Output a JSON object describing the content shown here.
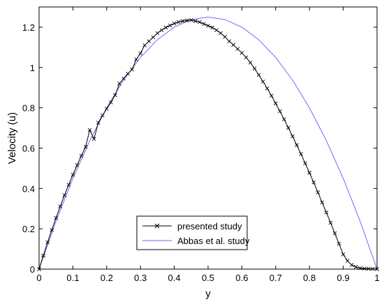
{
  "chart_data": {
    "type": "line",
    "title": "",
    "xlabel": "y",
    "ylabel": "Velocity (u)",
    "xlim": [
      0,
      1
    ],
    "ylim": [
      0,
      1.3
    ],
    "x_ticks": [
      "0",
      "0.1",
      "0.2",
      "0.3",
      "0.4",
      "0.5",
      "0.6",
      "0.7",
      "0.8",
      "0.9",
      "1"
    ],
    "y_ticks": [
      "0",
      "0.2",
      "0.4",
      "0.6",
      "0.8",
      "1",
      "1.2"
    ],
    "grid": false,
    "legend_position": "bottom-center",
    "series": [
      {
        "name": "presented study",
        "color": "#000000",
        "marker": "x",
        "x": [
          0,
          0.0125,
          0.025,
          0.0375,
          0.05,
          0.0625,
          0.075,
          0.0875,
          0.1,
          0.1125,
          0.125,
          0.1375,
          0.15,
          0.1625,
          0.175,
          0.1875,
          0.2,
          0.2125,
          0.225,
          0.2375,
          0.25,
          0.2625,
          0.275,
          0.2875,
          0.3,
          0.3125,
          0.325,
          0.3375,
          0.35,
          0.3625,
          0.375,
          0.3875,
          0.4,
          0.4125,
          0.425,
          0.4375,
          0.45,
          0.4625,
          0.475,
          0.4875,
          0.5,
          0.5125,
          0.525,
          0.5375,
          0.55,
          0.5625,
          0.575,
          0.5875,
          0.6,
          0.6125,
          0.625,
          0.6375,
          0.65,
          0.6625,
          0.675,
          0.6875,
          0.7,
          0.7125,
          0.725,
          0.7375,
          0.75,
          0.7625,
          0.775,
          0.7875,
          0.8,
          0.8125,
          0.825,
          0.8375,
          0.85,
          0.8625,
          0.875,
          0.8875,
          0.9,
          0.9125,
          0.925,
          0.9375,
          0.95,
          0.9625,
          0.975,
          0.9875,
          1
        ],
        "y": [
          0,
          0.067,
          0.133,
          0.194,
          0.254,
          0.311,
          0.366,
          0.418,
          0.468,
          0.516,
          0.562,
          0.606,
          0.69,
          0.646,
          0.726,
          0.762,
          0.795,
          0.827,
          0.863,
          0.92,
          0.945,
          0.969,
          0.99,
          1.04,
          1.07,
          1.11,
          1.13,
          1.15,
          1.17,
          1.185,
          1.198,
          1.208,
          1.218,
          1.225,
          1.23,
          1.233,
          1.235,
          1.23,
          1.225,
          1.216,
          1.207,
          1.198,
          1.185,
          1.17,
          1.152,
          1.13,
          1.112,
          1.092,
          1.072,
          1.05,
          1.024,
          0.995,
          0.963,
          0.93,
          0.896,
          0.86,
          0.822,
          0.783,
          0.743,
          0.701,
          0.659,
          0.615,
          0.571,
          0.525,
          0.478,
          0.43,
          0.381,
          0.331,
          0.281,
          0.23,
          0.178,
          0.126,
          0.073,
          0.041,
          0.021,
          0.011,
          0.005,
          0.003,
          0.002,
          0.001,
          0
        ]
      },
      {
        "name": "Abbas et al. study",
        "color": "#6b6bff",
        "marker": "none",
        "x": [
          0,
          0.05,
          0.1,
          0.15,
          0.2,
          0.25,
          0.3,
          0.35,
          0.4,
          0.45,
          0.5,
          0.55,
          0.6,
          0.65,
          0.7,
          0.75,
          0.8,
          0.85,
          0.9,
          0.95,
          1
        ],
        "y": [
          0,
          0.2375,
          0.45,
          0.6375,
          0.8,
          0.9375,
          1.05,
          1.1375,
          1.2,
          1.2375,
          1.25,
          1.2375,
          1.2,
          1.1375,
          1.05,
          0.9375,
          0.8,
          0.6375,
          0.45,
          0.2375,
          0
        ]
      }
    ]
  }
}
